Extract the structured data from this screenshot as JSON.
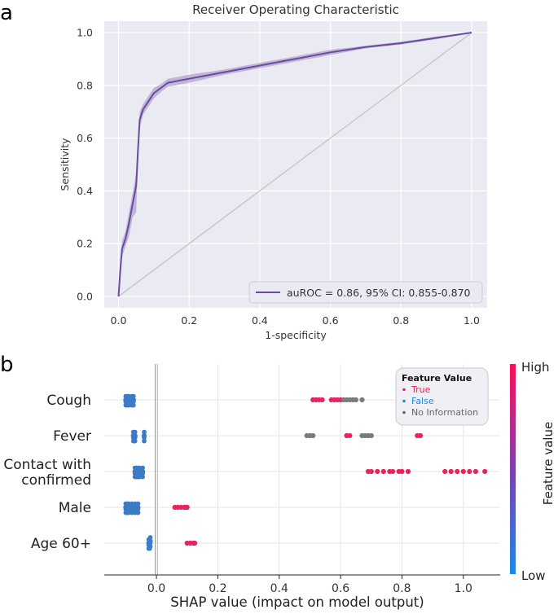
{
  "panels": {
    "a": "a",
    "b": "b"
  },
  "chart_data": [
    {
      "type": "line",
      "title": "Receiver Operating Characteristic",
      "xlabel": "1-specificity",
      "ylabel": "Sensitivity",
      "xlim": [
        0,
        1
      ],
      "ylim": [
        0,
        1
      ],
      "xticks": [
        "0.0",
        "0.2",
        "0.4",
        "0.6",
        "0.8",
        "1.0"
      ],
      "yticks": [
        "0.0",
        "0.2",
        "0.4",
        "0.6",
        "0.8",
        "1.0"
      ],
      "grid": true,
      "legend_position": "bottom-right",
      "colors": {
        "roc": "#6a4c9c",
        "band": "#9b86c7",
        "diagonal": "#c8c8c8",
        "background": "#eaeaf2"
      },
      "series": [
        {
          "name": "auROC = 0.86, 95% CI: 0.855-0.870",
          "x": [
            0,
            0.005,
            0.01,
            0.02,
            0.03,
            0.04,
            0.05,
            0.055,
            0.06,
            0.07,
            0.08,
            0.1,
            0.12,
            0.14,
            0.2,
            0.3,
            0.4,
            0.5,
            0.6,
            0.7,
            0.8,
            0.9,
            1.0
          ],
          "y": [
            0,
            0.1,
            0.18,
            0.22,
            0.28,
            0.35,
            0.42,
            0.55,
            0.67,
            0.71,
            0.73,
            0.77,
            0.79,
            0.81,
            0.825,
            0.85,
            0.875,
            0.9,
            0.925,
            0.945,
            0.96,
            0.98,
            1.0
          ],
          "y_lower": [
            0,
            0.08,
            0.15,
            0.19,
            0.23,
            0.3,
            0.32,
            0.5,
            0.64,
            0.69,
            0.71,
            0.75,
            0.775,
            0.795,
            0.81,
            0.84,
            0.865,
            0.89,
            0.915,
            0.94,
            0.955,
            0.975,
            1.0
          ],
          "y_upper": [
            0,
            0.12,
            0.21,
            0.25,
            0.32,
            0.39,
            0.47,
            0.6,
            0.7,
            0.73,
            0.75,
            0.79,
            0.805,
            0.825,
            0.84,
            0.86,
            0.885,
            0.91,
            0.935,
            0.95,
            0.965,
            0.985,
            1.0
          ]
        }
      ]
    },
    {
      "type": "scatter",
      "xlabel": "SHAP value (impact on model output)",
      "xlim": [
        -0.17,
        1.12
      ],
      "xticks": [
        -0.2,
        0.0,
        0.2,
        0.4,
        0.6,
        0.8,
        1.0
      ],
      "xtick_labels": [
        "−0.2",
        "0.0",
        "0.2",
        "0.4",
        "0.6",
        "0.8",
        "1.0"
      ],
      "categories": [
        "Cough",
        "Fever",
        "Contact with\nconfirmed",
        "Male",
        "Age 60+"
      ],
      "colorbar": {
        "label": "Feature value",
        "high": "High",
        "low": "Low",
        "high_color": "#ff0d57",
        "low_color": "#1e88e5"
      },
      "legend": {
        "title": "Feature Value",
        "items": [
          {
            "label": "True",
            "color": "#e8245a"
          },
          {
            "label": "False",
            "color": "#1e88e5"
          },
          {
            "label": "No Information",
            "color": "#666666"
          }
        ]
      },
      "series": [
        {
          "feature": "Cough",
          "points": [
            [
              -0.1,
              "low"
            ],
            [
              -0.095,
              "low"
            ],
            [
              -0.09,
              "low"
            ],
            [
              -0.08,
              "low"
            ],
            [
              -0.075,
              "low"
            ],
            [
              0.51,
              "high"
            ],
            [
              0.52,
              "high"
            ],
            [
              0.53,
              "high"
            ],
            [
              0.54,
              "high"
            ],
            [
              0.57,
              "high"
            ],
            [
              0.58,
              "high"
            ],
            [
              0.59,
              "high"
            ],
            [
              0.6,
              "high"
            ],
            [
              0.61,
              "na"
            ],
            [
              0.62,
              "na"
            ],
            [
              0.63,
              "na"
            ],
            [
              0.64,
              "na"
            ],
            [
              0.65,
              "na"
            ],
            [
              0.67,
              "na"
            ]
          ]
        },
        {
          "feature": "Fever",
          "points": [
            [
              -0.075,
              "low"
            ],
            [
              -0.07,
              "low"
            ],
            [
              -0.04,
              "low"
            ],
            [
              0.62,
              "high"
            ],
            [
              0.63,
              "high"
            ],
            [
              0.85,
              "high"
            ],
            [
              0.86,
              "high"
            ],
            [
              0.49,
              "na"
            ],
            [
              0.5,
              "na"
            ],
            [
              0.51,
              "na"
            ],
            [
              0.67,
              "na"
            ],
            [
              0.68,
              "na"
            ],
            [
              0.69,
              "na"
            ],
            [
              0.7,
              "na"
            ]
          ]
        },
        {
          "feature": "Contact with confirmed",
          "points": [
            [
              -0.07,
              "low"
            ],
            [
              -0.065,
              "low"
            ],
            [
              -0.06,
              "low"
            ],
            [
              -0.055,
              "low"
            ],
            [
              -0.045,
              "low"
            ],
            [
              0.69,
              "high"
            ],
            [
              0.7,
              "high"
            ],
            [
              0.72,
              "high"
            ],
            [
              0.74,
              "high"
            ],
            [
              0.76,
              "high"
            ],
            [
              0.77,
              "high"
            ],
            [
              0.79,
              "high"
            ],
            [
              0.8,
              "high"
            ],
            [
              0.82,
              "high"
            ],
            [
              0.94,
              "high"
            ],
            [
              0.96,
              "high"
            ],
            [
              0.98,
              "high"
            ],
            [
              1.0,
              "high"
            ],
            [
              1.02,
              "high"
            ],
            [
              1.04,
              "high"
            ],
            [
              1.07,
              "high"
            ]
          ]
        },
        {
          "feature": "Male",
          "points": [
            [
              -0.1,
              "low"
            ],
            [
              -0.095,
              "low"
            ],
            [
              -0.09,
              "low"
            ],
            [
              -0.08,
              "low"
            ],
            [
              -0.07,
              "low"
            ],
            [
              -0.06,
              "low"
            ],
            [
              0.06,
              "high"
            ],
            [
              0.07,
              "high"
            ],
            [
              0.08,
              "high"
            ],
            [
              0.09,
              "high"
            ],
            [
              0.095,
              "high"
            ],
            [
              0.1,
              "high"
            ]
          ]
        },
        {
          "feature": "Age 60+",
          "points": [
            [
              -0.025,
              "low"
            ],
            [
              -0.022,
              "low"
            ],
            [
              -0.02,
              "low"
            ],
            [
              0.1,
              "high"
            ],
            [
              0.11,
              "high"
            ],
            [
              0.12,
              "high"
            ],
            [
              0.125,
              "high"
            ]
          ]
        }
      ]
    }
  ]
}
